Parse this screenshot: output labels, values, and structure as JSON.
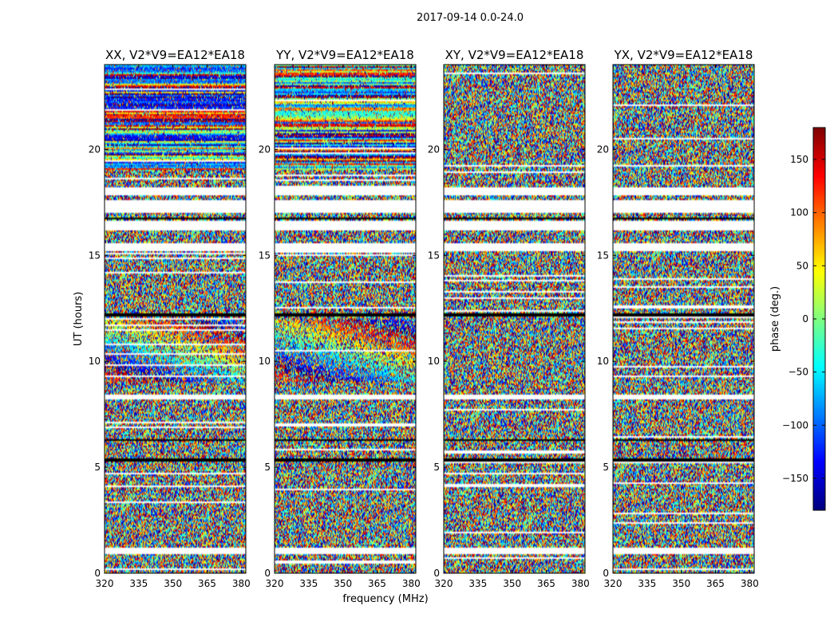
{
  "figure": {
    "suptitle": "2017-09-14 0.0-24.0"
  },
  "chart_data": {
    "type": "heatmap",
    "xlabel": "frequency (MHz)",
    "ylabel": "UT (hours)",
    "xlim": [
      320,
      382
    ],
    "ylim": [
      0,
      24
    ],
    "xticks": [
      320,
      335,
      350,
      365,
      380
    ],
    "yticks": [
      0,
      5,
      10,
      15,
      20
    ],
    "colorbar": {
      "label": "phase (deg.)",
      "range": [
        -180,
        180
      ],
      "ticks": [
        -150,
        -100,
        -50,
        0,
        50,
        100,
        150
      ],
      "colormap": "jet"
    },
    "panels": [
      {
        "title": "XX, V2*V9=EA12*EA18"
      },
      {
        "title": "YY, V2*V9=EA12*EA18"
      },
      {
        "title": "XY, V2*V9=EA12*EA18"
      },
      {
        "title": "YX, V2*V9=EA12*EA18"
      }
    ],
    "data_gaps_ut": [
      [
        16.2,
        16.6
      ],
      [
        17.0,
        17.6
      ],
      [
        17.8,
        18.2
      ],
      [
        0.9,
        1.2
      ],
      [
        8.2,
        8.4
      ],
      [
        15.2,
        15.6
      ]
    ],
    "black_lines_ut": [
      16.75,
      12.2,
      6.3,
      5.35
    ]
  }
}
